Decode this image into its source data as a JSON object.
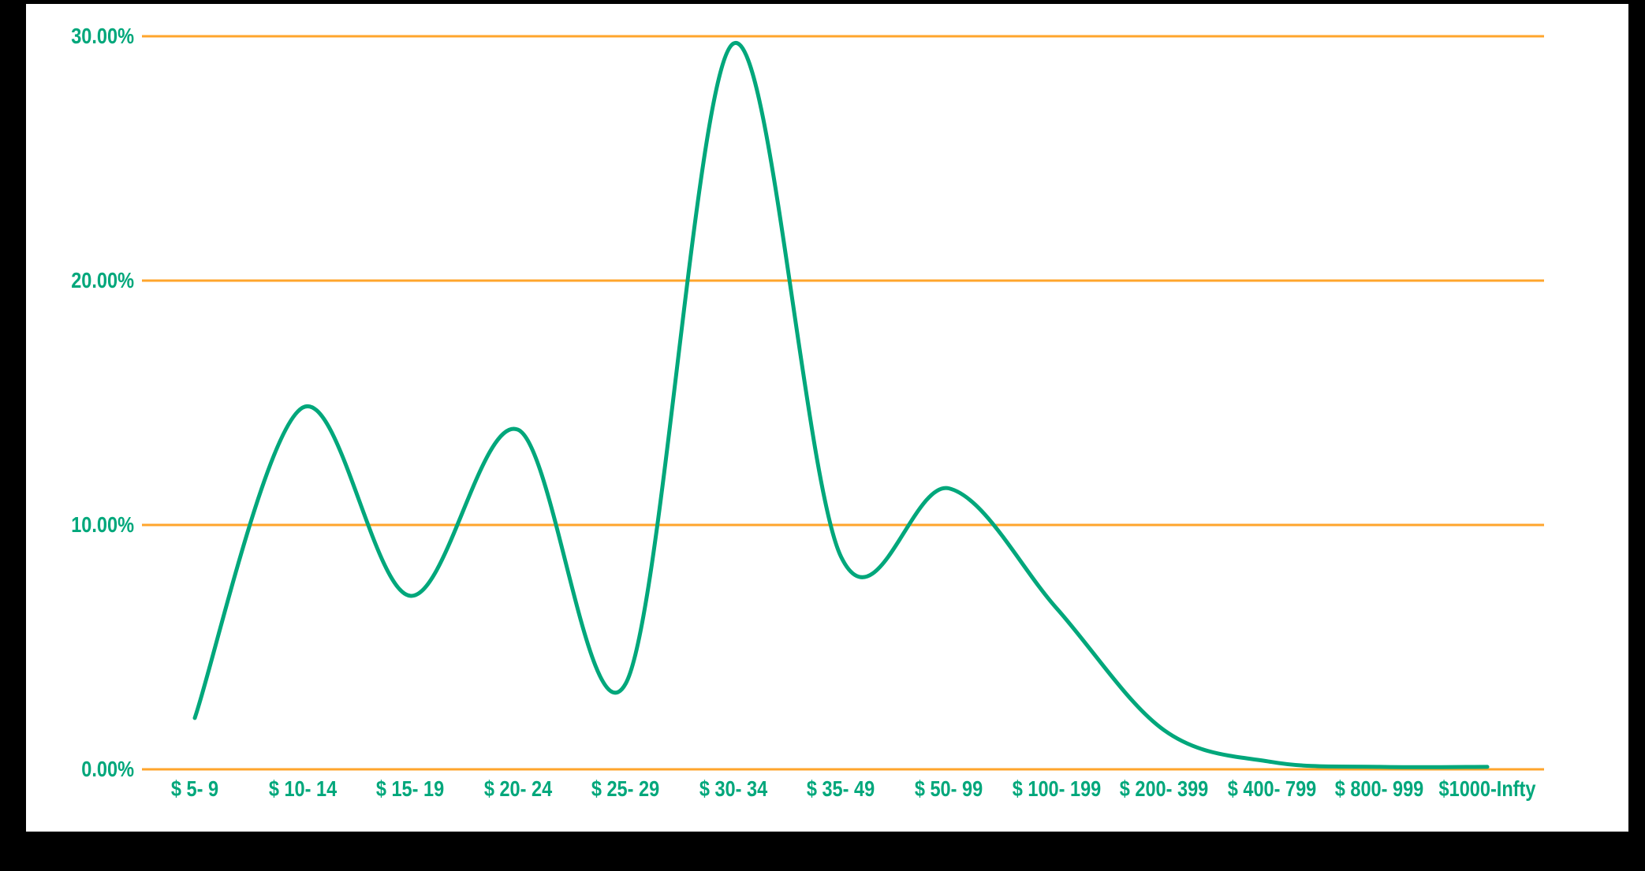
{
  "window": {
    "frame_color": "#000000",
    "panel_color": "#FFFFFF"
  },
  "chart_data": {
    "type": "line",
    "title": "",
    "xlabel": "",
    "ylabel": "",
    "categories": [
      "$ 5- 9",
      "$ 10- 14",
      "$ 15- 19",
      "$ 20- 24",
      "$ 25- 29",
      "$ 30- 34",
      "$ 35- 49",
      "$ 50- 99",
      "$ 100- 199",
      "$ 200- 399",
      "$ 400- 799",
      "$ 800- 999",
      "$1000-Infty"
    ],
    "values": [
      2.1,
      14.8,
      7.1,
      13.9,
      3.5,
      29.7,
      8.7,
      11.5,
      6.6,
      1.6,
      0.3,
      0.1,
      0.1
    ],
    "value_unit": "percent",
    "ylim": [
      0,
      30
    ],
    "y_ticks": [
      {
        "value": 0,
        "label": "0.00%"
      },
      {
        "value": 10,
        "label": "10.00%"
      },
      {
        "value": 20,
        "label": "20.00%"
      },
      {
        "value": 30,
        "label": "30.00%"
      }
    ],
    "grid": "horizontal",
    "legend": "none",
    "smooth": true,
    "colors": {
      "line": "#00A77B",
      "gridline": "#FFA52C",
      "labels": "#00A77B",
      "background": "#FFFFFF"
    }
  }
}
